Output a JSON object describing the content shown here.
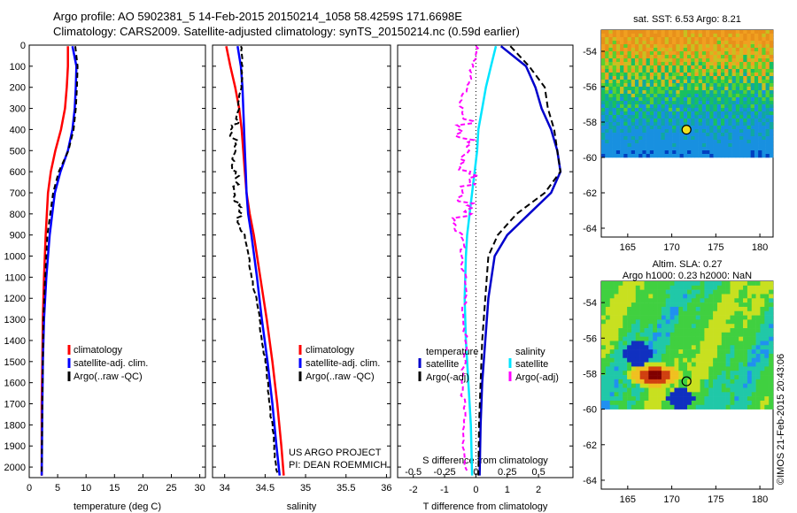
{
  "header": {
    "line1": "Argo profile: AO 5902381_5 14-Feb-2015 20150214_1058 58.4259S 171.6698E",
    "line2": "Climatology: CARS2009. Satellite-adjusted climatology: synTS_20150214.nc (0.59d earlier)"
  },
  "credit": "©IMOS 21-Feb-2015 20:43:06",
  "colors": {
    "climatology": "#ff0000",
    "satellite": "#0000ff",
    "argo": "#000000",
    "t_satellite": "#0000cc",
    "s_satellite": "#00e5ff",
    "s_argo": "#ff00ff"
  },
  "chart_data": [
    {
      "type": "line",
      "panel": "temperature",
      "xlabel": "temperature (deg C)",
      "ylabel": "",
      "xlim": [
        0,
        31
      ],
      "ylim": [
        2050,
        0
      ],
      "xticks": [
        0,
        5,
        10,
        15,
        20,
        25,
        30
      ],
      "yticks": [
        0,
        100,
        200,
        300,
        400,
        500,
        600,
        700,
        800,
        900,
        1000,
        1100,
        1200,
        1300,
        1400,
        1500,
        1600,
        1700,
        1800,
        1900,
        2000
      ],
      "legend": [
        "climatology",
        "satellite-adj. clim.",
        "Argo(..raw -QC)"
      ],
      "series": [
        {
          "name": "climatology",
          "x": [
            6.8,
            6.8,
            6.6,
            6.3,
            5.6,
            4.6,
            3.8,
            3.3,
            2.9,
            2.6,
            2.4,
            2.3,
            2.2,
            2.2
          ],
          "y": [
            5,
            100,
            200,
            300,
            400,
            500,
            600,
            700,
            900,
            1100,
            1300,
            1500,
            1700,
            2040
          ]
        },
        {
          "name": "satellite-adj. clim.",
          "x": [
            7.6,
            8.3,
            8.2,
            8.0,
            7.6,
            6.8,
            5.5,
            4.5,
            3.6,
            3.0,
            2.6,
            2.4,
            2.3,
            2.2
          ],
          "y": [
            5,
            100,
            200,
            300,
            400,
            500,
            600,
            700,
            900,
            1100,
            1300,
            1500,
            1700,
            2040
          ]
        },
        {
          "name": "Argo(..raw -QC)",
          "x": [
            8.1,
            8.5,
            8.4,
            8.2,
            7.8,
            6.9,
            5.2,
            4.2,
            3.2,
            2.8,
            2.5,
            2.4,
            2.3,
            2.2
          ],
          "y": [
            5,
            100,
            200,
            300,
            400,
            500,
            600,
            700,
            900,
            1100,
            1300,
            1500,
            1700,
            2040
          ]
        }
      ]
    },
    {
      "type": "line",
      "panel": "salinity",
      "xlabel": "salinity",
      "ylabel": "",
      "xlim": [
        33.85,
        36.05
      ],
      "ylim": [
        2050,
        0
      ],
      "xticks": [
        34,
        34.5,
        35,
        35.5,
        36
      ],
      "legend": [
        "climatology",
        "satellite-adj. clim.",
        "Argo(..raw -QC)"
      ],
      "annotation": [
        "US ARGO PROJECT",
        "PI: DEAN ROEMMICH"
      ],
      "series": [
        {
          "name": "climatology",
          "x": [
            34.02,
            34.07,
            34.13,
            34.18,
            34.21,
            34.23,
            34.25,
            34.27,
            34.31,
            34.36,
            34.44,
            34.52,
            34.59,
            34.65,
            34.7,
            34.73
          ],
          "y": [
            5,
            100,
            200,
            300,
            400,
            500,
            600,
            700,
            800,
            900,
            1100,
            1300,
            1500,
            1700,
            1900,
            2040
          ]
        },
        {
          "name": "satellite-adj. clim.",
          "x": [
            34.16,
            34.2,
            34.22,
            34.23,
            34.24,
            34.25,
            34.26,
            34.27,
            34.29,
            34.33,
            34.4,
            34.46,
            34.53,
            34.59,
            34.64,
            34.68
          ],
          "y": [
            5,
            100,
            200,
            300,
            400,
            500,
            600,
            700,
            800,
            900,
            1100,
            1300,
            1500,
            1700,
            1900,
            2040
          ]
        },
        {
          "name": "Argo(..raw -QC)",
          "x": [
            34.2,
            34.22,
            34.2,
            34.17,
            34.1,
            34.12,
            34.13,
            34.15,
            34.18,
            34.24,
            34.34,
            34.43,
            34.5,
            34.56,
            34.61,
            34.65
          ],
          "y": [
            5,
            100,
            200,
            300,
            400,
            500,
            600,
            700,
            800,
            900,
            1100,
            1300,
            1500,
            1700,
            1900,
            2040
          ]
        }
      ]
    },
    {
      "type": "line",
      "panel": "difference",
      "xlabel": "T difference from climatology",
      "xlabel2": "S difference from climatology",
      "xlim": [
        -2.5,
        3.1
      ],
      "ylim": [
        2050,
        0
      ],
      "xticks": [
        -2,
        -1,
        0,
        1,
        2
      ],
      "xticks_s": [
        -0.5,
        -0.25,
        0,
        0.25,
        0.5
      ],
      "legend_left": [
        "temperature",
        "satellite",
        "Argo(-adj)"
      ],
      "legend_right": [
        "salinity",
        "satellite",
        "Argo(-adj)"
      ],
      "series": [
        {
          "name": "T satellite",
          "x": [
            0.8,
            1.6,
            1.9,
            2.1,
            2.4,
            2.6,
            2.7,
            2.4,
            1.7,
            1.0,
            0.6,
            0.4,
            0.3,
            0.2,
            0.15,
            0.12
          ],
          "y": [
            5,
            100,
            200,
            300,
            400,
            500,
            600,
            700,
            800,
            900,
            1000,
            1200,
            1400,
            1600,
            1800,
            2040
          ]
        },
        {
          "name": "T Argo(-adj)",
          "x": [
            1.1,
            1.7,
            2.2,
            2.3,
            2.5,
            2.6,
            2.7,
            2.2,
            1.3,
            0.7,
            0.4,
            0.3,
            0.2,
            0.15,
            0.1,
            0.08
          ],
          "y": [
            5,
            100,
            200,
            300,
            400,
            500,
            600,
            700,
            800,
            900,
            1000,
            1200,
            1400,
            1600,
            1800,
            2040
          ]
        },
        {
          "name": "S satellite",
          "x": [
            0.16,
            0.12,
            0.08,
            0.05,
            0.02,
            0.01,
            -0.01,
            -0.03,
            -0.05,
            -0.07,
            -0.08,
            -0.09,
            -0.08,
            -0.06,
            -0.04,
            -0.03
          ],
          "y": [
            5,
            100,
            200,
            300,
            400,
            500,
            600,
            700,
            800,
            900,
            1000,
            1200,
            1400,
            1600,
            1800,
            2040
          ]
        },
        {
          "name": "S Argo(-adj)",
          "x": [
            0.0,
            -0.02,
            -0.08,
            -0.12,
            -0.1,
            -0.08,
            -0.06,
            -0.05,
            -0.1,
            -0.12,
            -0.1,
            -0.09,
            -0.09,
            -0.1,
            -0.1,
            -0.08
          ],
          "y": [
            5,
            100,
            200,
            300,
            400,
            500,
            600,
            700,
            800,
            900,
            1000,
            1200,
            1400,
            1600,
            1800,
            2040
          ]
        }
      ]
    },
    {
      "type": "heatmap",
      "panel": "sst_map",
      "title": "sat. SST: 6.53 Argo: 8.21",
      "xlim": [
        162,
        181.5
      ],
      "ylim": [
        -64.5,
        -52.8
      ],
      "xticks": [
        165,
        170,
        175,
        180
      ],
      "yticks": [
        -54,
        -56,
        -58,
        -60,
        -62,
        -64
      ],
      "data_extent": {
        "lon": [
          162,
          181.5
        ],
        "lat": [
          -60,
          -52.8
        ]
      },
      "marker": {
        "lon": 171.67,
        "lat": -58.43
      }
    },
    {
      "type": "heatmap",
      "panel": "sla_map",
      "title": "Altim. SLA: 0.27",
      "subtitle": "Argo h1000: 0.23 h2000: NaN",
      "xlim": [
        162,
        181.5
      ],
      "ylim": [
        -64.5,
        -52.8
      ],
      "xticks": [
        165,
        170,
        175,
        180
      ],
      "yticks": [
        -54,
        -56,
        -58,
        -60,
        -62,
        -64
      ],
      "data_extent": {
        "lon": [
          162,
          181.5
        ],
        "lat": [
          -60,
          -52.8
        ]
      },
      "marker": {
        "lon": 171.67,
        "lat": -58.43
      }
    }
  ]
}
